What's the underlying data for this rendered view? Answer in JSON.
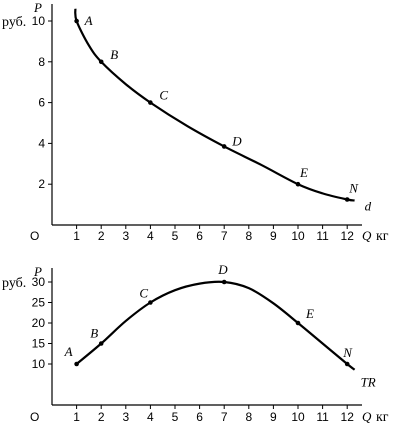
{
  "chart_data": [
    {
      "type": "line",
      "title": "",
      "curve_label": "d",
      "xlabel": "Q",
      "x_unit": "кг",
      "ylabel": "P",
      "y_unit": "руб.",
      "origin_label": "O",
      "xlim": [
        0,
        13
      ],
      "ylim": [
        0,
        11
      ],
      "x_ticks": [
        1,
        2,
        3,
        4,
        5,
        6,
        7,
        8,
        9,
        10,
        11,
        12
      ],
      "y_ticks": [
        2,
        4,
        6,
        8,
        10
      ],
      "curve": {
        "x": [
          0.95,
          1,
          1.5,
          2,
          3,
          4,
          5.5,
          7,
          8.5,
          10,
          11,
          12,
          12.3
        ],
        "y": [
          10.6,
          10,
          8.8,
          8,
          6.9,
          6,
          4.85,
          3.85,
          2.95,
          2.0,
          1.55,
          1.25,
          1.2
        ]
      },
      "points": [
        {
          "label": "A",
          "x": 1,
          "y": 10
        },
        {
          "label": "B",
          "x": 2,
          "y": 8
        },
        {
          "label": "C",
          "x": 4,
          "y": 6
        },
        {
          "label": "D",
          "x": 7,
          "y": 3.85
        },
        {
          "label": "E",
          "x": 10,
          "y": 2
        },
        {
          "label": "N",
          "x": 12,
          "y": 1.25
        }
      ]
    },
    {
      "type": "line",
      "title": "",
      "curve_label": "TR",
      "xlabel": "Q",
      "x_unit": "кг",
      "ylabel": "P",
      "y_unit": "руб.",
      "origin_label": "O",
      "xlim": [
        0,
        13
      ],
      "ylim": [
        0,
        33
      ],
      "x_ticks": [
        1,
        2,
        3,
        4,
        5,
        6,
        7,
        8,
        9,
        10,
        11,
        12
      ],
      "y_ticks": [
        10,
        15,
        20,
        25,
        30
      ],
      "curve": {
        "x": [
          1,
          2,
          3,
          4,
          5,
          6,
          7,
          8,
          9,
          10,
          11,
          12,
          12.3
        ],
        "y": [
          10,
          15,
          20.5,
          25,
          28,
          29.6,
          30,
          28.5,
          24.8,
          20,
          15,
          10,
          8.6
        ]
      },
      "points": [
        {
          "label": "A",
          "x": 1,
          "y": 10
        },
        {
          "label": "B",
          "x": 2,
          "y": 15
        },
        {
          "label": "C",
          "x": 4,
          "y": 25
        },
        {
          "label": "D",
          "x": 7,
          "y": 30
        },
        {
          "label": "E",
          "x": 10,
          "y": 20
        },
        {
          "label": "N",
          "x": 12,
          "y": 10
        }
      ]
    }
  ]
}
